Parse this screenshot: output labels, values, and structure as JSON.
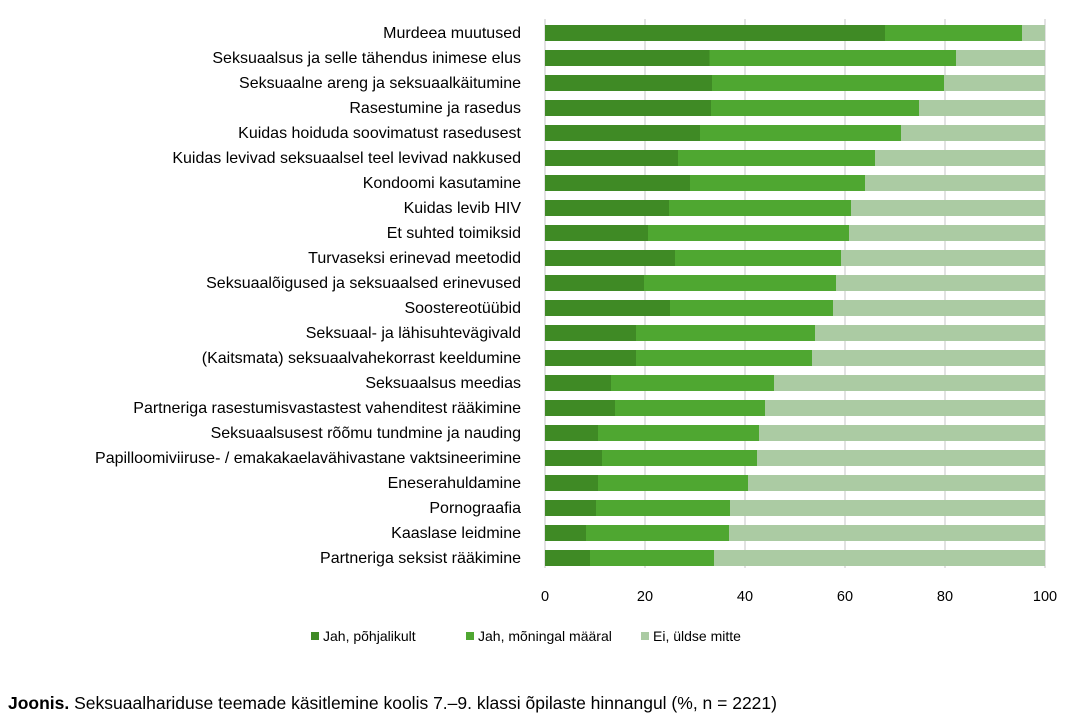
{
  "chart_data": {
    "type": "bar",
    "orientation": "horizontal",
    "stacked": true,
    "categories": [
      "Murdeea muutused",
      "Seksuaalsus ja selle tähendus inimese elus",
      "Seksuaalne areng ja seksuaalkäitumine",
      "Rasestumine ja rasedus",
      "Kuidas hoiduda soovimatust rasedusest",
      "Kuidas levivad seksuaalsel teel levivad nakkused",
      "Kondoomi kasutamine",
      "Kuidas levib HIV",
      "Et suhted toimiksid",
      "Turvaseksi erinevad meetodid",
      "Seksuaalõigused ja seksuaalsed erinevused",
      "Soostereotüübid",
      "Seksuaal- ja lähisuhtevägivald",
      "(Kaitsmata) seksuaalvahekorrast keeldumine",
      "Seksuaalsus meedias",
      "Partneriga rasestumisvastastest vahenditest rääkimine",
      "Seksuaalsusest rõõmu tundmine ja nauding",
      "Papilloomiviiruse- / emakakaelavähivastane vaktsineerimine",
      "Eneserahuldamine",
      "Pornograafia",
      "Kaaslase leidmine",
      "Partneriga seksist rääkimine"
    ],
    "series": [
      {
        "name": "Jah, põhjalikult",
        "color": "#3f8a25",
        "values": [
          68,
          32.9,
          33.4,
          33.2,
          31,
          26.6,
          29,
          24.8,
          20.6,
          26,
          19.8,
          25,
          18.2,
          18.2,
          13.2,
          14,
          10.6,
          11.4,
          10.6,
          10.2,
          8.2,
          9
        ]
      },
      {
        "name": "Jah, mõningal määral",
        "color": "#4fa731",
        "values": [
          27.4,
          49.3,
          46.4,
          41.6,
          40.2,
          39.4,
          35,
          36.4,
          40.2,
          33.2,
          38.4,
          32.6,
          35.8,
          35.2,
          32.6,
          30,
          32.2,
          31,
          30,
          26.8,
          28.6,
          24.8
        ]
      },
      {
        "name": "Ei, üldse mitte",
        "color": "#abcba3",
        "values": [
          4.6,
          17.8,
          20.2,
          25.2,
          28.8,
          34,
          36,
          38.8,
          39.2,
          40.8,
          41.8,
          42.4,
          46,
          46.6,
          54.2,
          56,
          57.2,
          57.6,
          59.4,
          63,
          63.2,
          66.2
        ]
      }
    ],
    "xlim": [
      0,
      100
    ],
    "xticks": [
      "0",
      "20",
      "40",
      "60",
      "80",
      "100"
    ],
    "grid": true,
    "legend": "bottom",
    "grid_color": "#d9d9d9"
  },
  "caption": {
    "label": "Joonis.",
    "text": " Seksuaalhariduse teemade käsitlemine koolis 7.–9. klassi õpilaste hinnangul (%, n = 2221)"
  }
}
